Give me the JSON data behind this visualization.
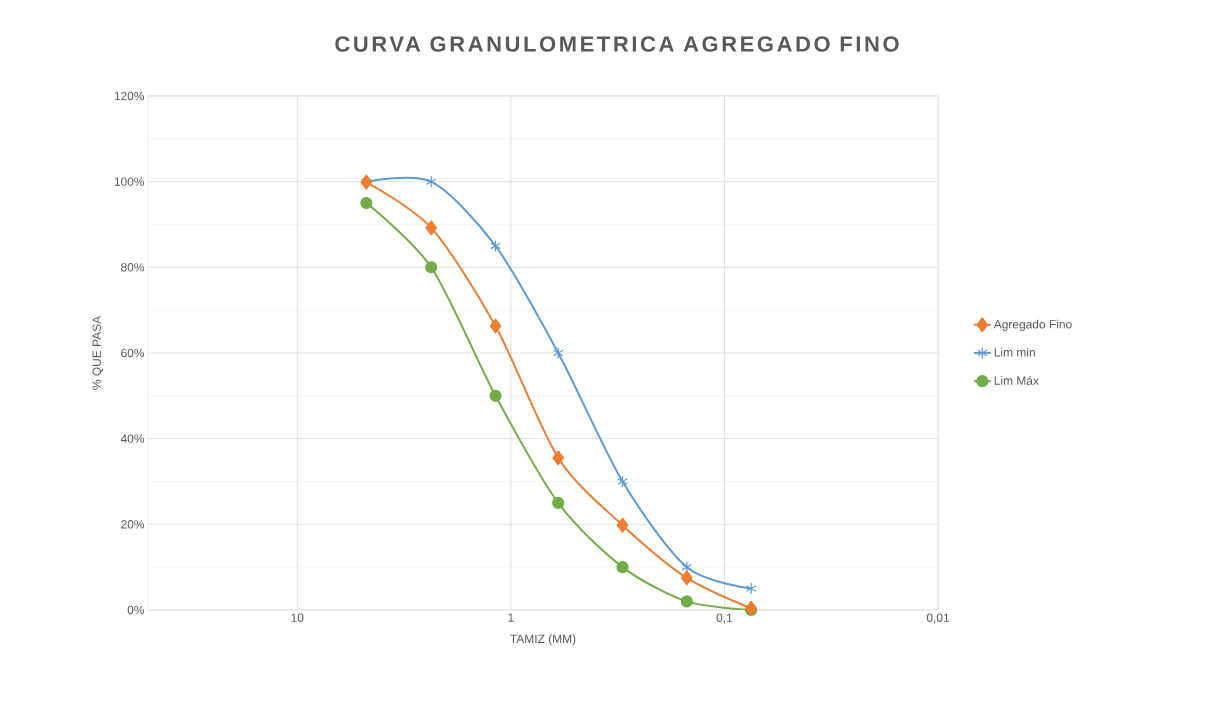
{
  "chart_data": {
    "type": "line",
    "title": "CURVA GRANULOMETRICA AGREGADO FINO",
    "xlabel": "TAMIZ (MM)",
    "ylabel": "% QUE PASA",
    "x": [
      4.75,
      2.36,
      1.18,
      0.6,
      0.3,
      0.15,
      0.075
    ],
    "series": [
      {
        "name": "Agregado Fino",
        "color": "#ed7d31",
        "marker": "diamond",
        "values": [
          99.9,
          89.2,
          66.3,
          35.5,
          19.8,
          7.5,
          0.4
        ]
      },
      {
        "name": "Lim min",
        "color": "#5b9bd5",
        "marker": "cross",
        "values": [
          100,
          100,
          85,
          60,
          30,
          10,
          5
        ]
      },
      {
        "name": "Lim Máx",
        "color": "#70ad47",
        "marker": "circle",
        "values": [
          95,
          80,
          50,
          25,
          10,
          2,
          0
        ]
      }
    ],
    "log": "x",
    "xlim": [
      50,
      0.01
    ],
    "xticks": [
      10,
      1,
      {
        "value": 0.1,
        "label": "0,1"
      },
      {
        "value": 0.01,
        "label": "0,01"
      }
    ],
    "ylim": [
      0,
      120
    ],
    "yticks": [
      {
        "value": 0,
        "label": "0%"
      },
      {
        "value": 20,
        "label": "20%"
      },
      {
        "value": 40,
        "label": "40%"
      },
      {
        "value": 60,
        "label": "60%"
      },
      {
        "value": 80,
        "label": "80%"
      },
      {
        "value": 100,
        "label": "100%"
      },
      {
        "value": 120,
        "label": "120%"
      }
    ],
    "grid": true,
    "legend": "right"
  }
}
